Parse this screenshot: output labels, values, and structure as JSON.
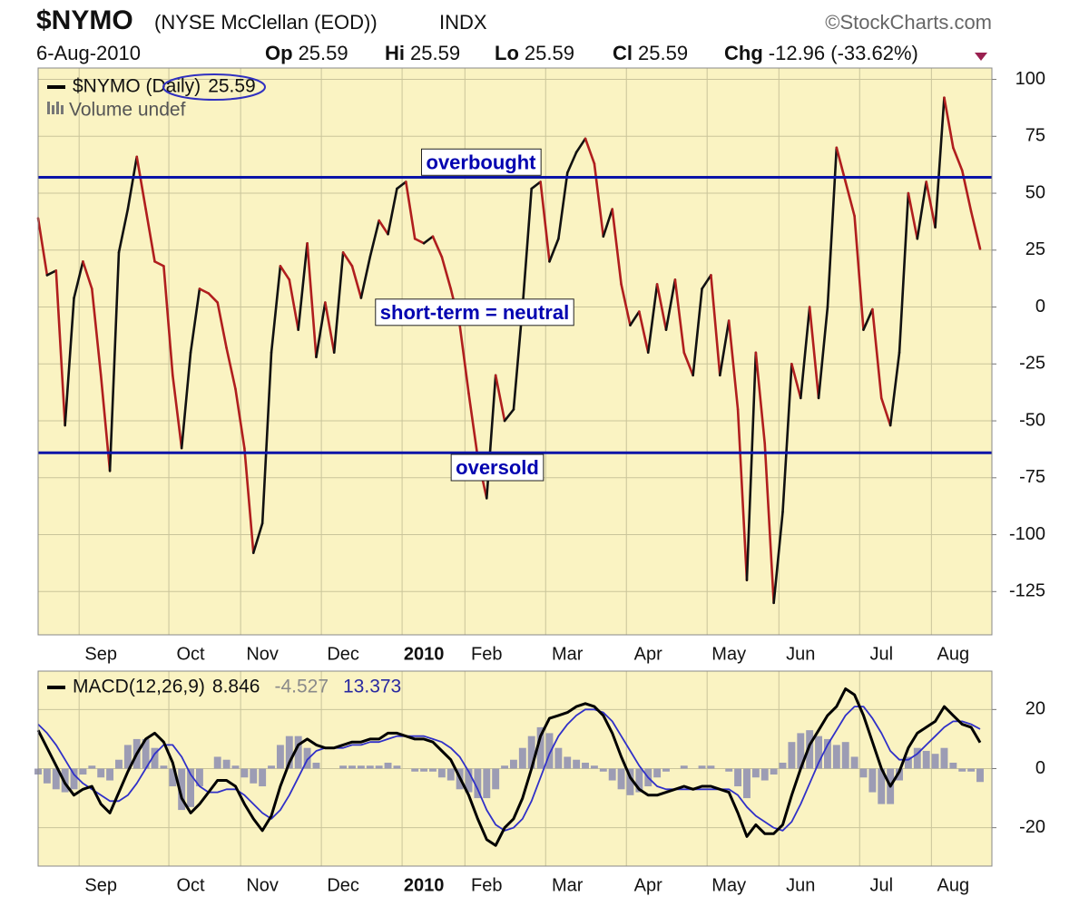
{
  "header": {
    "symbol": "$NYMO",
    "name": "(NYSE McClellan (EOD))",
    "exchange": "INDX",
    "source": "©StockCharts.com",
    "date": "6-Aug-2010",
    "quote": [
      {
        "label": "Op",
        "value": "25.59"
      },
      {
        "label": "Hi",
        "value": "25.59"
      },
      {
        "label": "Lo",
        "value": "25.59"
      },
      {
        "label": "Cl",
        "value": "25.59"
      },
      {
        "label": "Chg",
        "value": "-12.96 (-33.62%)"
      }
    ]
  },
  "chart_data": [
    {
      "type": "line",
      "background": "#faf3c2",
      "grid": true,
      "categories": [
        null,
        null,
        null,
        null,
        null,
        null,
        null,
        "Sep",
        null,
        null,
        null,
        null,
        null,
        null,
        null,
        null,
        null,
        "Oct",
        null,
        null,
        null,
        null,
        null,
        null,
        null,
        "Nov",
        null,
        null,
        null,
        null,
        null,
        null,
        null,
        null,
        "Dec",
        null,
        null,
        null,
        null,
        null,
        null,
        null,
        null,
        "2010",
        null,
        null,
        null,
        null,
        null,
        null,
        "Feb",
        null,
        null,
        null,
        null,
        null,
        null,
        null,
        null,
        "Mar",
        null,
        null,
        null,
        null,
        null,
        null,
        null,
        null,
        "Apr",
        null,
        null,
        null,
        null,
        null,
        null,
        null,
        null,
        "May",
        null,
        null,
        null,
        null,
        null,
        null,
        null,
        "Jun",
        null,
        null,
        null,
        null,
        null,
        null,
        null,
        null,
        "Jul",
        null,
        null,
        null,
        null,
        null,
        null,
        null,
        "Aug",
        null,
        null,
        null
      ],
      "series": [
        {
          "name": "$NYMO (Daily)",
          "up_color": "#111111",
          "down_color": "#b01e1e",
          "values": [
            39,
            14,
            16,
            -52,
            4,
            20,
            8,
            -30,
            -72,
            24,
            43,
            66,
            43,
            20,
            18,
            -30,
            -62,
            -20,
            8,
            6,
            2,
            -18,
            -36,
            -62,
            -108,
            -95,
            -20,
            18,
            12,
            -10,
            28,
            -22,
            2,
            -20,
            24,
            18,
            4,
            22,
            38,
            32,
            52,
            55,
            30,
            28,
            31,
            22,
            8,
            -8,
            -38,
            -66,
            -84,
            -30,
            -50,
            -45,
            0,
            52,
            55,
            20,
            30,
            59,
            68,
            74,
            63,
            31,
            43,
            10,
            -8,
            -2,
            -20,
            10,
            -10,
            12,
            -20,
            -30,
            8,
            14,
            -30,
            -6,
            -45,
            -120,
            -20,
            -60,
            -130,
            -90,
            -25,
            -40,
            0,
            -40,
            0,
            70,
            55,
            40,
            -10,
            -1,
            -40,
            -52,
            -20,
            50,
            30,
            55,
            35,
            92,
            70,
            60,
            42,
            25.59
          ]
        }
      ],
      "legend_note": "Volume undef",
      "ylim": [
        -144,
        105
      ],
      "yticks": [
        -125,
        -100,
        -75,
        -50,
        -25,
        0,
        25,
        50,
        75,
        100
      ],
      "reference_lines": [
        {
          "label": "overbought",
          "value": 57,
          "color": "#0a14a8"
        },
        {
          "label": "oversold",
          "value": -64,
          "color": "#0a14a8"
        }
      ],
      "annotations": [
        "short-term = neutral"
      ]
    },
    {
      "type": "combo",
      "background": "#faf3c2",
      "grid": true,
      "categories": [
        null,
        null,
        null,
        null,
        null,
        null,
        null,
        "Sep",
        null,
        null,
        null,
        null,
        null,
        null,
        null,
        null,
        null,
        "Oct",
        null,
        null,
        null,
        null,
        null,
        null,
        null,
        "Nov",
        null,
        null,
        null,
        null,
        null,
        null,
        null,
        null,
        "Dec",
        null,
        null,
        null,
        null,
        null,
        null,
        null,
        null,
        "2010",
        null,
        null,
        null,
        null,
        null,
        null,
        "Feb",
        null,
        null,
        null,
        null,
        null,
        null,
        null,
        null,
        "Mar",
        null,
        null,
        null,
        null,
        null,
        null,
        null,
        null,
        "Apr",
        null,
        null,
        null,
        null,
        null,
        null,
        null,
        null,
        "May",
        null,
        null,
        null,
        null,
        null,
        null,
        null,
        "Jun",
        null,
        null,
        null,
        null,
        null,
        null,
        null,
        null,
        "Jul",
        null,
        null,
        null,
        null,
        null,
        null,
        null,
        "Aug",
        null,
        null,
        null
      ],
      "series": [
        {
          "mark": "bar",
          "color": "#9c9cb4",
          "label_color": "#8a8a8a",
          "values": [
            -2,
            -5,
            -7,
            -8,
            -7,
            -2,
            1,
            -3,
            -4,
            3,
            8,
            10,
            10,
            7,
            1,
            -6,
            -14,
            -13,
            -6,
            0,
            4,
            3,
            1,
            -3,
            -5,
            -6,
            1,
            8,
            11,
            11,
            7,
            2,
            0,
            0,
            1,
            1,
            1,
            1,
            1,
            2,
            1,
            0,
            -1,
            -1,
            -1,
            -3,
            -4,
            -7,
            -8,
            -10,
            -10,
            -7,
            1,
            3,
            7,
            11,
            14,
            12,
            7,
            4,
            3,
            2,
            1,
            -1,
            -4,
            -7,
            -9,
            -8,
            -6,
            -3,
            -1,
            0,
            1,
            0,
            1,
            1,
            0,
            -1,
            -6,
            -10,
            -3,
            -4,
            -2,
            2,
            9,
            12,
            13,
            11,
            10,
            8,
            9,
            4,
            -3,
            -8,
            -12,
            -12,
            -4,
            4,
            7,
            6,
            5,
            7,
            2,
            -1,
            -1,
            -4.527
          ]
        },
        {
          "mark": "line",
          "color": "#3030c8",
          "label_color": "#2828a0",
          "values": [
            15,
            12,
            8,
            3,
            -2,
            -5,
            -7,
            -9,
            -11,
            -11,
            -9,
            -5,
            0,
            5,
            8,
            8,
            4,
            -2,
            -6,
            -8,
            -8,
            -7,
            -7,
            -9,
            -12,
            -15,
            -17,
            -14,
            -9,
            -3,
            3,
            6,
            7,
            7,
            7,
            8,
            8,
            9,
            9,
            10,
            11,
            11,
            11,
            11,
            10,
            9,
            7,
            4,
            -1,
            -7,
            -14,
            -19,
            -21,
            -20,
            -17,
            -11,
            -3,
            5,
            11,
            15,
            18,
            20,
            20,
            19,
            16,
            11,
            6,
            1,
            -3,
            -6,
            -7,
            -7,
            -7,
            -7,
            -7,
            -7,
            -7,
            -7,
            -9,
            -13,
            -16,
            -18,
            -20,
            -21,
            -18,
            -12,
            -5,
            2,
            8,
            13,
            18,
            21,
            21,
            17,
            12,
            6,
            3,
            3,
            5,
            8,
            11,
            14,
            16,
            16,
            15,
            13.373
          ]
        },
        {
          "name": "MACD(12,26,9)",
          "mark": "line",
          "color": "#000000",
          "label_color": "#111111",
          "values": [
            13,
            7,
            1,
            -5,
            -9,
            -7,
            -6,
            -12,
            -15,
            -8,
            -1,
            5,
            10,
            12,
            9,
            2,
            -10,
            -15,
            -12,
            -8,
            -4,
            -4,
            -6,
            -12,
            -17,
            -21,
            -16,
            -6,
            2,
            8,
            10,
            8,
            7,
            7,
            8,
            9,
            9,
            10,
            10,
            12,
            12,
            11,
            10,
            10,
            9,
            6,
            3,
            -3,
            -9,
            -17,
            -24,
            -26,
            -20,
            -17,
            -10,
            0,
            11,
            17,
            18,
            19,
            21,
            22,
            21,
            18,
            12,
            4,
            -3,
            -7,
            -9,
            -9,
            -8,
            -7,
            -6,
            -7,
            -6,
            -6,
            -7,
            -8,
            -15,
            -23,
            -19,
            -22,
            -22,
            -19,
            -9,
            0,
            8,
            13,
            18,
            21,
            27,
            25,
            18,
            9,
            0,
            -6,
            -1,
            7,
            12,
            14,
            16,
            21,
            18,
            15,
            14,
            8.846
          ]
        }
      ],
      "ylim": [
        -33,
        33
      ],
      "yticks": [
        -20,
        0,
        20
      ]
    }
  ]
}
